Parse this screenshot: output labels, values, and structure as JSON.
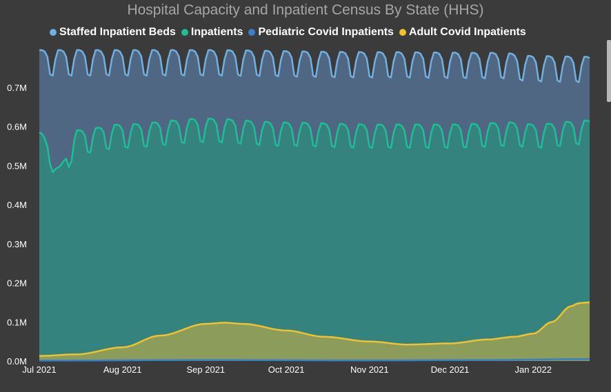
{
  "chart_data": {
    "type": "area",
    "title": "Hospital Capacity and Inpatient Census By State (HHS)",
    "x_axis": {
      "type": "date",
      "start": "2021-07-01",
      "end": "2022-01-22",
      "tick_labels": [
        "Jul 2021",
        "Aug 2021",
        "Sep 2021",
        "Oct 2021",
        "Nov 2021",
        "Dec 2021",
        "Jan 2022"
      ],
      "tick_dates": [
        "2021-07-01",
        "2021-08-01",
        "2021-09-01",
        "2021-10-01",
        "2021-11-01",
        "2021-12-01",
        "2022-01-01"
      ]
    },
    "y_axis": {
      "ylim": [
        0,
        800000
      ],
      "tick_values": [
        0,
        100000,
        200000,
        300000,
        400000,
        500000,
        600000,
        700000
      ],
      "tick_labels": [
        "0.0M",
        "0.1M",
        "0.2M",
        "0.3M",
        "0.4M",
        "0.5M",
        "0.6M",
        "0.7M"
      ]
    },
    "grid": false,
    "legend_position": "top",
    "series": [
      {
        "name": "Staffed Inpatient Beds",
        "color": "#71b0e0",
        "fill": "#4f6783",
        "pattern": "weekly",
        "weekly_high": 795000,
        "weekly_low": 730000,
        "points": [
          [
            "2021-07-01",
            795000
          ],
          [
            "2021-09-01",
            795000
          ],
          [
            "2021-11-01",
            790000
          ],
          [
            "2021-12-20",
            788000
          ],
          [
            "2022-01-01",
            780000
          ],
          [
            "2022-01-22",
            778000
          ]
        ]
      },
      {
        "name": "Inpatients",
        "color": "#1dbf95",
        "fill": "#35837f",
        "pattern": "weekly",
        "weekly_amplitude": 60000,
        "points": [
          [
            "2021-07-01",
            585000
          ],
          [
            "2021-07-05",
            560000
          ],
          [
            "2021-07-08",
            495000
          ],
          [
            "2021-07-15",
            590000
          ],
          [
            "2021-08-01",
            605000
          ],
          [
            "2021-09-01",
            620000
          ],
          [
            "2021-10-01",
            610000
          ],
          [
            "2021-11-01",
            605000
          ],
          [
            "2021-12-01",
            605000
          ],
          [
            "2021-12-25",
            610000
          ],
          [
            "2022-01-01",
            605000
          ],
          [
            "2022-01-22",
            615000
          ]
        ]
      },
      {
        "name": "Pediatric Covid Inpatients",
        "color": "#3a7fce",
        "fill": "#3a7fce",
        "points": [
          [
            "2021-07-01",
            1000
          ],
          [
            "2021-09-01",
            2500
          ],
          [
            "2021-11-01",
            1500
          ],
          [
            "2021-12-15",
            2500
          ],
          [
            "2022-01-22",
            5000
          ]
        ]
      },
      {
        "name": "Adult Covid Inpatients",
        "color": "#f2c12e",
        "fill": "#8c9c5a",
        "points": [
          [
            "2021-07-01",
            13000
          ],
          [
            "2021-07-15",
            17000
          ],
          [
            "2021-08-01",
            35000
          ],
          [
            "2021-08-15",
            65000
          ],
          [
            "2021-09-01",
            95000
          ],
          [
            "2021-09-08",
            98000
          ],
          [
            "2021-09-15",
            95000
          ],
          [
            "2021-10-01",
            78000
          ],
          [
            "2021-10-15",
            62000
          ],
          [
            "2021-11-01",
            50000
          ],
          [
            "2021-11-15",
            42000
          ],
          [
            "2021-12-01",
            45000
          ],
          [
            "2021-12-15",
            55000
          ],
          [
            "2021-12-25",
            62000
          ],
          [
            "2022-01-01",
            70000
          ],
          [
            "2022-01-08",
            100000
          ],
          [
            "2022-01-15",
            140000
          ],
          [
            "2022-01-18",
            148000
          ],
          [
            "2022-01-22",
            150000
          ]
        ]
      }
    ]
  }
}
